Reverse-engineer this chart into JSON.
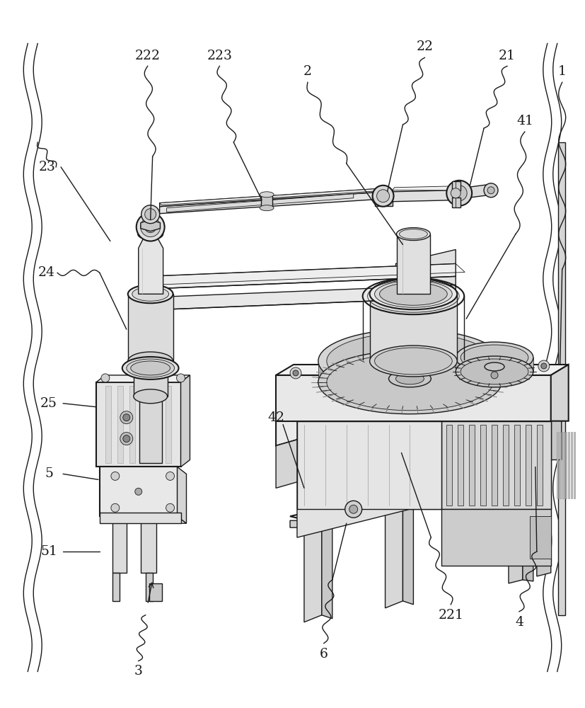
{
  "bg": "#ffffff",
  "lc": "#1a1a1a",
  "lc_light": "#555555",
  "fc_white": "#ffffff",
  "fc_light": "#f0f0f0",
  "fc_mid": "#d8d8d8",
  "fc_dark": "#b8b8b8",
  "fc_vdark": "#909090",
  "fw": 8.27,
  "fh": 10.0,
  "dpi": 100,
  "lw": 1.0,
  "lw_thick": 1.5,
  "lw_thin": 0.6
}
